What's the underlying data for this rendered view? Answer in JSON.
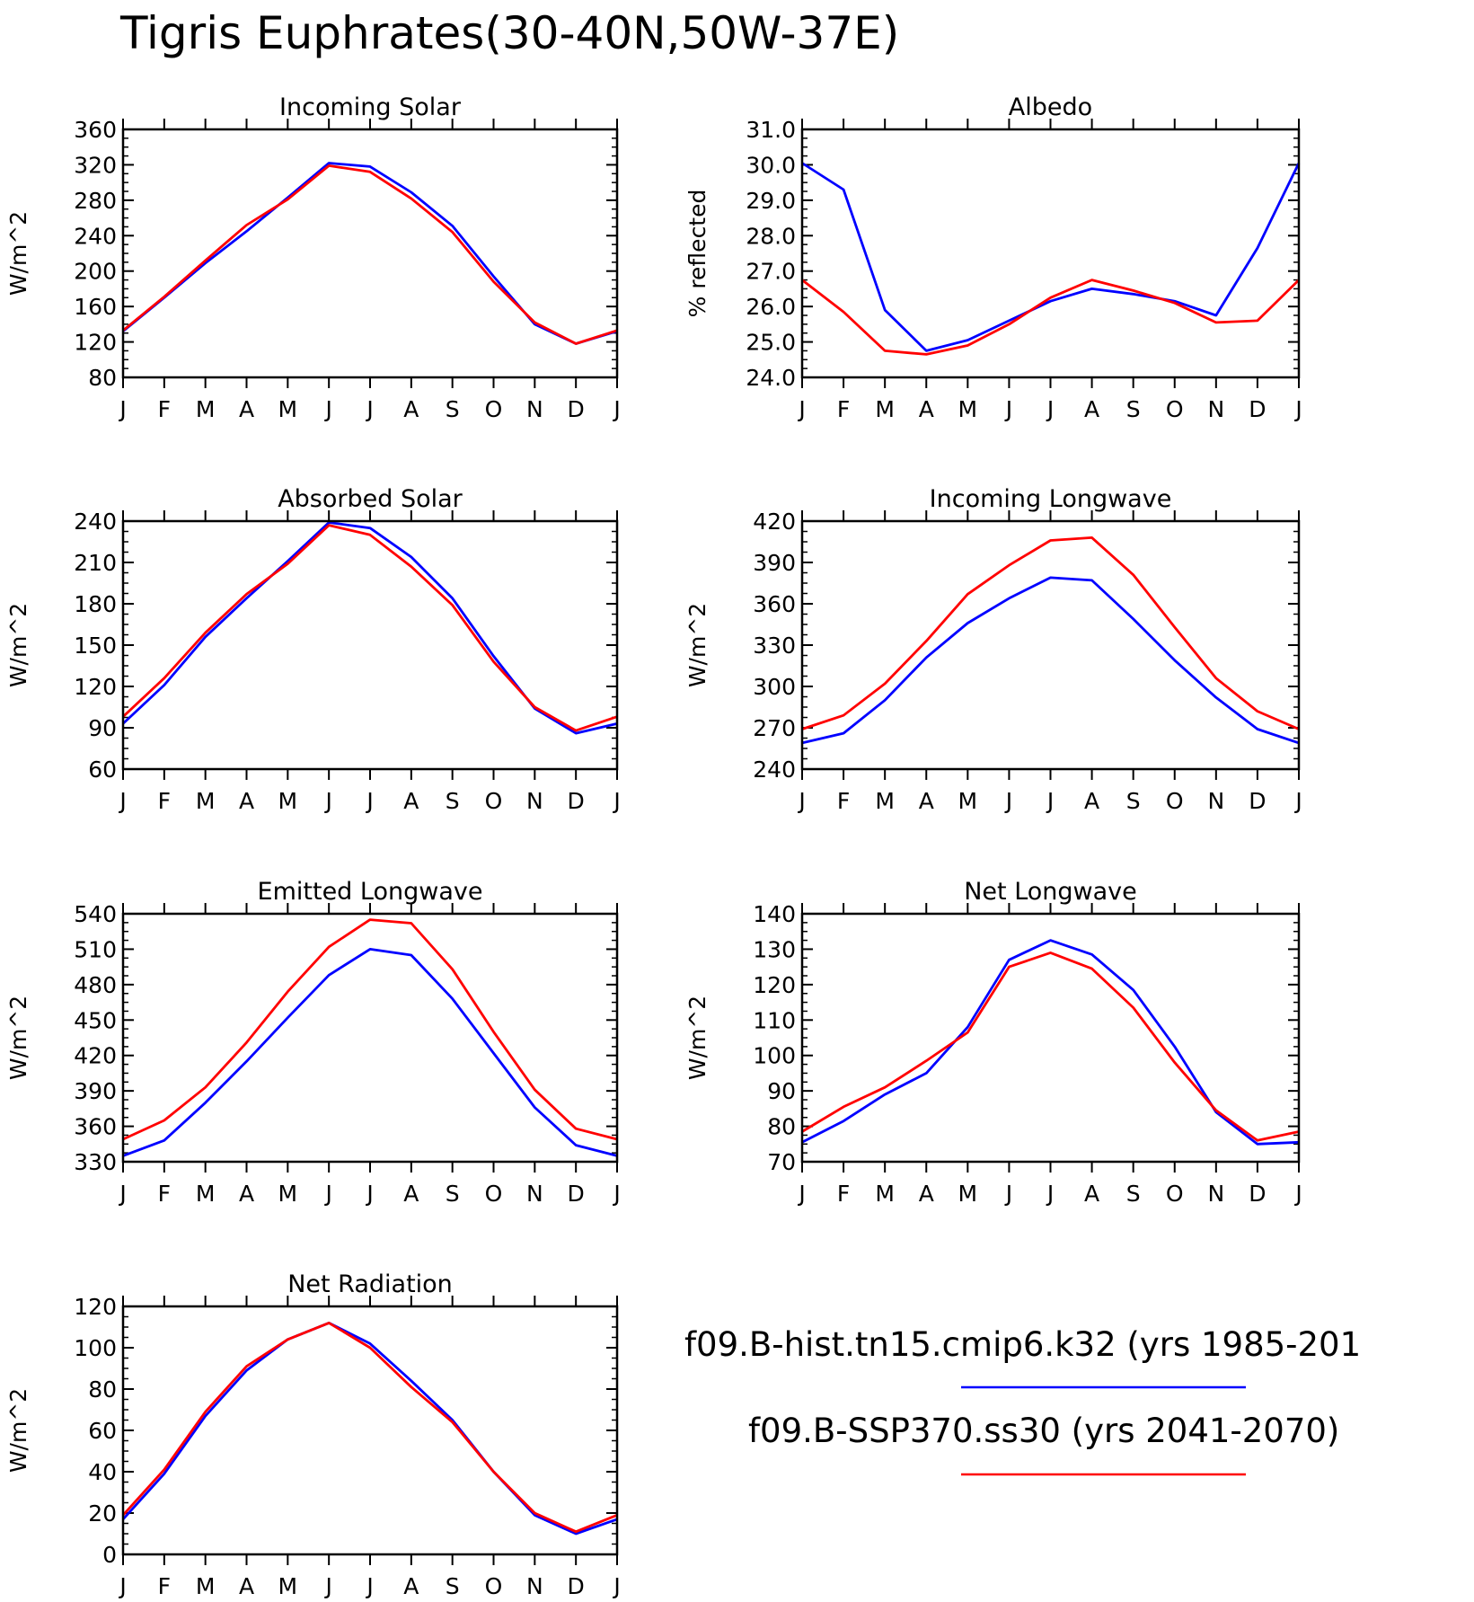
{
  "title": "Tigris Euphrates(30-40N,50W-37E)",
  "colors": {
    "hist": "#0000ff",
    "ssp": "#ff0000"
  },
  "legend": [
    {
      "label": "f09.B-hist.tn15.cmip6.k32 (yrs 1985-201",
      "color": "#0000ff"
    },
    {
      "label": "f09.B-SSP370.ss30 (yrs 2041-2070)",
      "color": "#ff0000"
    }
  ],
  "chart_data": [
    {
      "type": "line",
      "title": "Incoming Solar",
      "ylabel": "W/m^2",
      "categories": [
        "J",
        "F",
        "M",
        "A",
        "M",
        "J",
        "J",
        "A",
        "S",
        "O",
        "N",
        "D",
        "J"
      ],
      "ylim": [
        80,
        360
      ],
      "yticks": [
        "80",
        "120",
        "160",
        "200",
        "240",
        "280",
        "320",
        "360"
      ],
      "series": [
        {
          "color": "#0000ff",
          "values": [
            132,
            170,
            209,
            245,
            283,
            322,
            318,
            289,
            251,
            194,
            140,
            118,
            132
          ]
        },
        {
          "color": "#ff0000",
          "values": [
            133,
            171,
            212,
            252,
            281,
            319,
            312,
            282,
            244,
            188,
            142,
            118,
            133
          ]
        }
      ]
    },
    {
      "type": "line",
      "title": "Albedo",
      "ylabel": "% reflected",
      "categories": [
        "J",
        "F",
        "M",
        "A",
        "M",
        "J",
        "J",
        "A",
        "S",
        "O",
        "N",
        "D",
        "J"
      ],
      "ylim": [
        24,
        31
      ],
      "yticks": [
        "24.0",
        "25.0",
        "26.0",
        "27.0",
        "28.0",
        "29.0",
        "30.0",
        "31.0"
      ],
      "series": [
        {
          "color": "#0000ff",
          "values": [
            30.05,
            29.3,
            25.9,
            24.75,
            25.05,
            25.6,
            26.15,
            26.5,
            26.35,
            26.15,
            25.75,
            27.65,
            30.05
          ]
        },
        {
          "color": "#ff0000",
          "values": [
            26.75,
            25.85,
            24.75,
            24.65,
            24.9,
            25.5,
            26.25,
            26.75,
            26.45,
            26.1,
            25.55,
            25.6,
            26.75
          ]
        }
      ]
    },
    {
      "type": "line",
      "title": "Absorbed Solar",
      "ylabel": "W/m^2",
      "categories": [
        "J",
        "F",
        "M",
        "A",
        "M",
        "J",
        "J",
        "A",
        "S",
        "O",
        "N",
        "D",
        "J"
      ],
      "ylim": [
        60,
        240
      ],
      "yticks": [
        "60",
        "90",
        "120",
        "150",
        "180",
        "210",
        "240"
      ],
      "series": [
        {
          "color": "#0000ff",
          "values": [
            93,
            121,
            156,
            184,
            211,
            239,
            235,
            214,
            184,
            142,
            104,
            86,
            93
          ]
        },
        {
          "color": "#ff0000",
          "values": [
            98,
            126,
            159,
            187,
            209,
            237,
            230,
            207,
            179,
            138,
            105,
            88,
            98
          ]
        }
      ]
    },
    {
      "type": "line",
      "title": "Incoming Longwave",
      "ylabel": "W/m^2",
      "categories": [
        "J",
        "F",
        "M",
        "A",
        "M",
        "J",
        "J",
        "A",
        "S",
        "O",
        "N",
        "D",
        "J"
      ],
      "ylim": [
        240,
        420
      ],
      "yticks": [
        "240",
        "270",
        "300",
        "330",
        "360",
        "390",
        "420"
      ],
      "series": [
        {
          "color": "#0000ff",
          "values": [
            259,
            266,
            290,
            321,
            346,
            364,
            379,
            377,
            349,
            319,
            292,
            269,
            259
          ]
        },
        {
          "color": "#ff0000",
          "values": [
            269,
            279,
            302,
            333,
            367,
            388,
            406,
            408,
            381,
            343,
            306,
            282,
            269
          ]
        }
      ]
    },
    {
      "type": "line",
      "title": "Emitted Longwave",
      "ylabel": "W/m^2",
      "categories": [
        "J",
        "F",
        "M",
        "A",
        "M",
        "J",
        "J",
        "A",
        "S",
        "O",
        "N",
        "D",
        "J"
      ],
      "ylim": [
        330,
        540
      ],
      "yticks": [
        "330",
        "360",
        "390",
        "420",
        "450",
        "480",
        "510",
        "540"
      ],
      "series": [
        {
          "color": "#0000ff",
          "values": [
            335,
            348,
            380,
            415,
            452,
            488,
            510,
            505,
            468,
            422,
            376,
            344,
            335
          ]
        },
        {
          "color": "#ff0000",
          "values": [
            349,
            365,
            393,
            431,
            474,
            512,
            535,
            532,
            493,
            440,
            391,
            358,
            349
          ]
        }
      ]
    },
    {
      "type": "line",
      "title": "Net Longwave",
      "ylabel": "W/m^2",
      "categories": [
        "J",
        "F",
        "M",
        "A",
        "M",
        "J",
        "J",
        "A",
        "S",
        "O",
        "N",
        "D",
        "J"
      ],
      "ylim": [
        70,
        140
      ],
      "yticks": [
        "70",
        "80",
        "90",
        "100",
        "110",
        "120",
        "130",
        "140"
      ],
      "series": [
        {
          "color": "#0000ff",
          "values": [
            75.5,
            81.5,
            89,
            95,
            108,
            127,
            132.5,
            128.5,
            118.5,
            102.5,
            84,
            75,
            75.5
          ]
        },
        {
          "color": "#ff0000",
          "values": [
            78.5,
            85.5,
            91,
            98.5,
            106.5,
            125,
            129,
            124.5,
            113.5,
            98,
            84.5,
            76,
            78.5
          ]
        }
      ]
    },
    {
      "type": "line",
      "title": "Net Radiation",
      "ylabel": "W/m^2",
      "categories": [
        "J",
        "F",
        "M",
        "A",
        "M",
        "J",
        "J",
        "A",
        "S",
        "O",
        "N",
        "D",
        "J"
      ],
      "ylim": [
        0,
        120
      ],
      "yticks": [
        "0",
        "20",
        "40",
        "60",
        "80",
        "100",
        "120"
      ],
      "series": [
        {
          "color": "#0000ff",
          "values": [
            17,
            39,
            67,
            89,
            104,
            112,
            102,
            84,
            65,
            40,
            19,
            10,
            17
          ]
        },
        {
          "color": "#ff0000",
          "values": [
            19,
            41,
            69,
            91,
            104,
            112,
            100,
            81,
            64,
            40,
            20,
            11,
            19
          ]
        }
      ]
    }
  ]
}
